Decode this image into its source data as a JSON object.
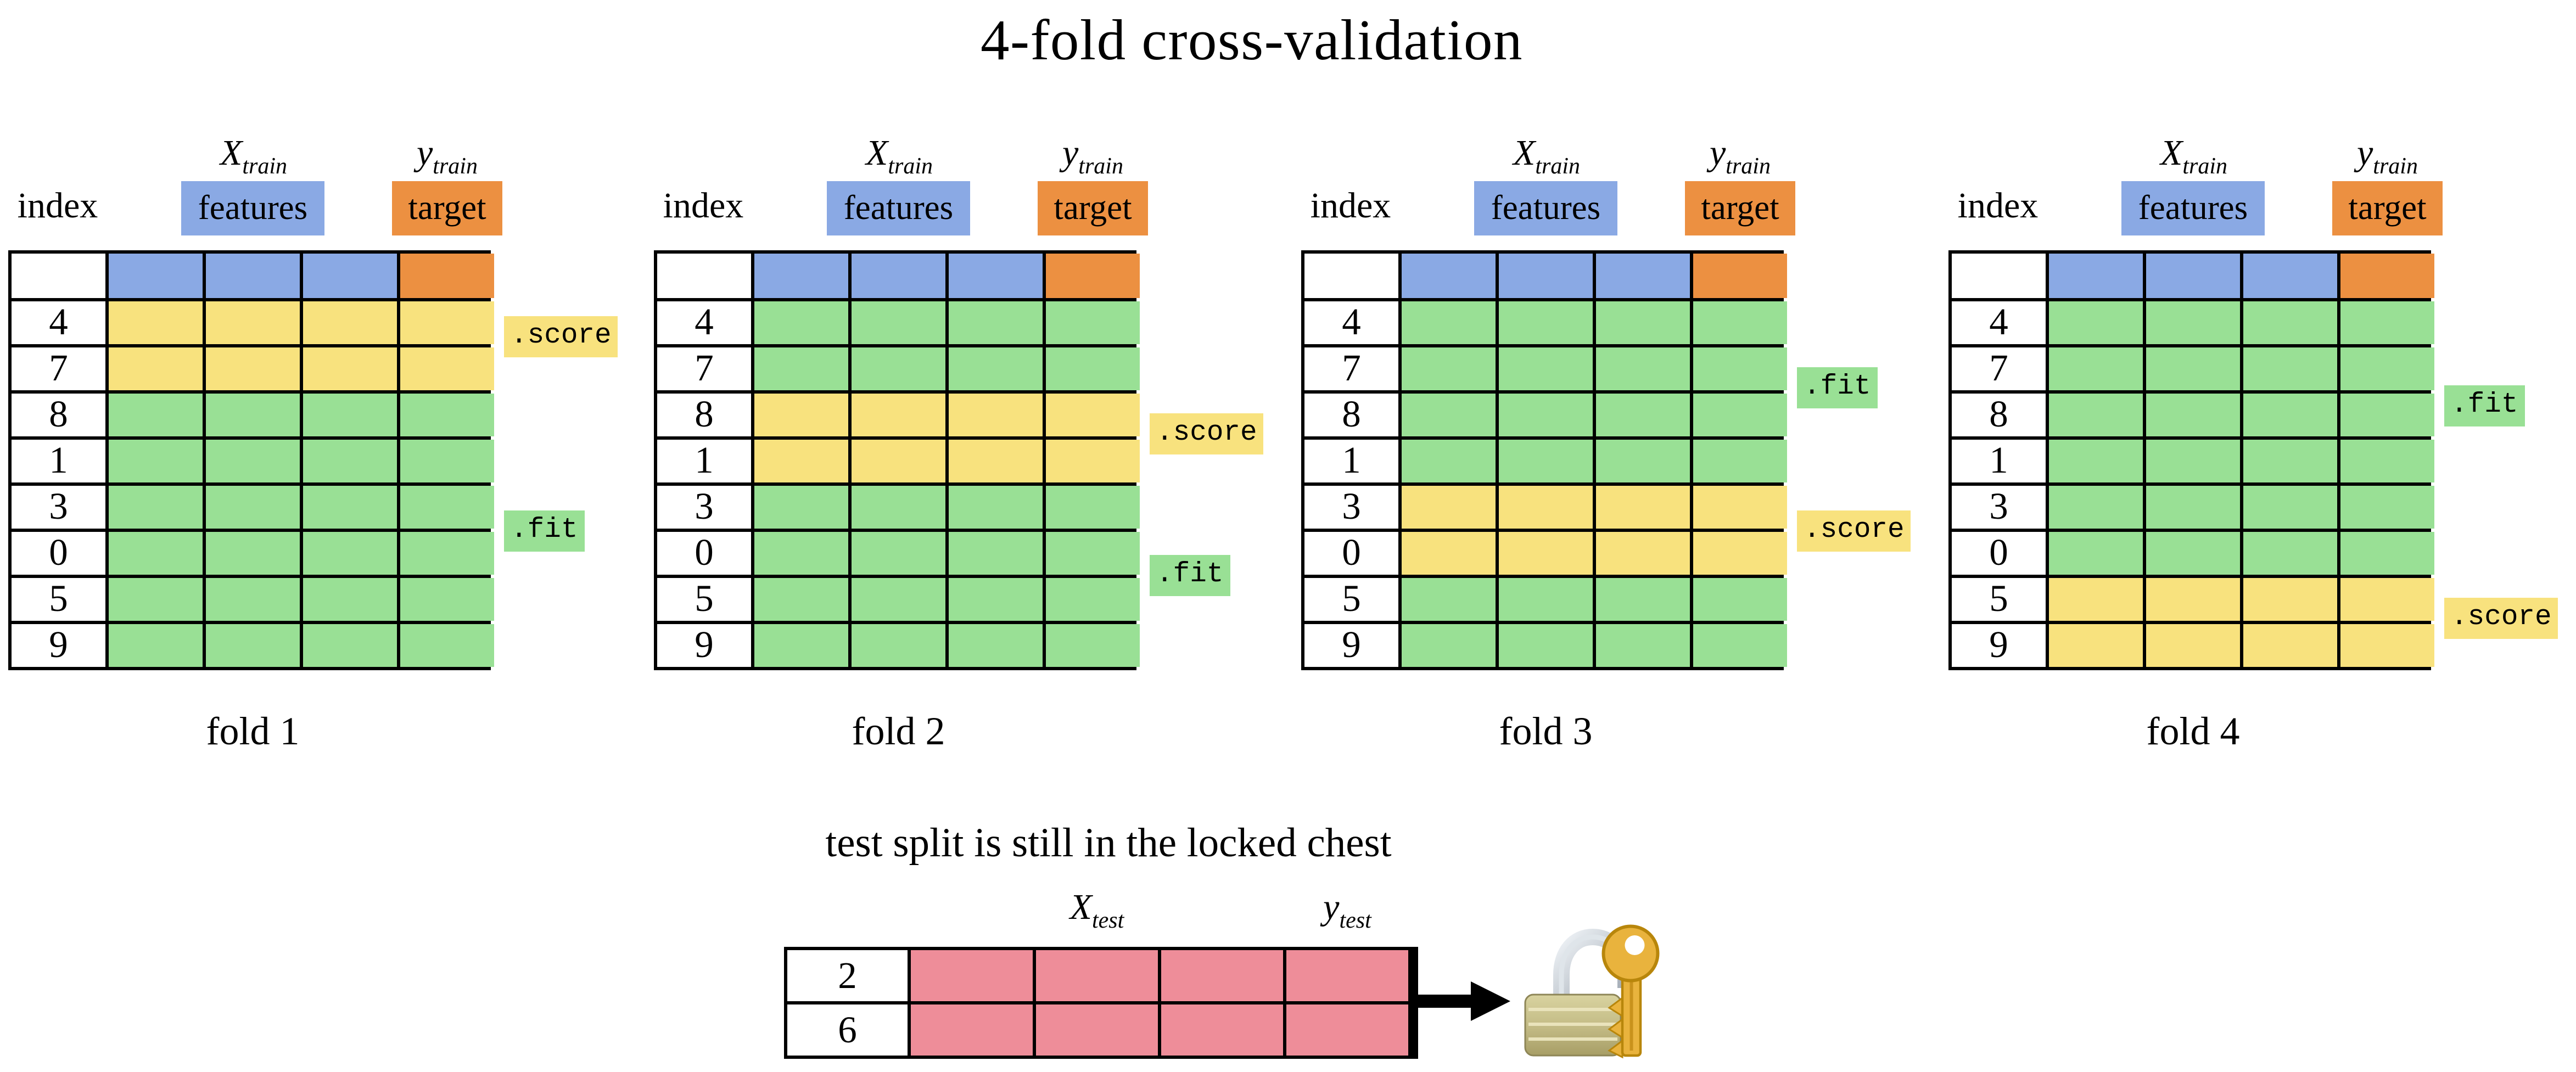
{
  "title": "4-fold cross-validation",
  "header_labels": {
    "index": "index",
    "x_base": "X",
    "x_sub": "train",
    "features": "features",
    "y_base": "y",
    "y_sub": "train",
    "target": "target"
  },
  "labels": {
    "fit": ".fit",
    "score": ".score"
  },
  "colors": {
    "features_blue": "#8aa9e4",
    "target_orange": "#ec9041",
    "score_yellow": "#f8e27e",
    "fit_green": "#99e095",
    "test_pink": "#ee8d99",
    "grid_line": "#000000"
  },
  "folds": [
    {
      "caption": "fold 1",
      "score_anchor": 0.8,
      "fit_anchor": 5.0,
      "rows": [
        {
          "index": "4",
          "role": "score"
        },
        {
          "index": "7",
          "role": "score"
        },
        {
          "index": "8",
          "role": "fit"
        },
        {
          "index": "1",
          "role": "fit"
        },
        {
          "index": "3",
          "role": "fit"
        },
        {
          "index": "0",
          "role": "fit"
        },
        {
          "index": "5",
          "role": "fit"
        },
        {
          "index": "9",
          "role": "fit"
        }
      ]
    },
    {
      "caption": "fold 2",
      "score_anchor": 2.9,
      "fit_anchor": 5.95,
      "rows": [
        {
          "index": "4",
          "role": "fit"
        },
        {
          "index": "7",
          "role": "fit"
        },
        {
          "index": "8",
          "role": "score"
        },
        {
          "index": "1",
          "role": "score"
        },
        {
          "index": "3",
          "role": "fit"
        },
        {
          "index": "0",
          "role": "fit"
        },
        {
          "index": "5",
          "role": "fit"
        },
        {
          "index": "9",
          "role": "fit"
        }
      ]
    },
    {
      "caption": "fold 3",
      "score_anchor": 5.0,
      "fit_anchor": 1.9,
      "rows": [
        {
          "index": "4",
          "role": "fit"
        },
        {
          "index": "7",
          "role": "fit"
        },
        {
          "index": "8",
          "role": "fit"
        },
        {
          "index": "1",
          "role": "fit"
        },
        {
          "index": "3",
          "role": "score"
        },
        {
          "index": "0",
          "role": "score"
        },
        {
          "index": "5",
          "role": "fit"
        },
        {
          "index": "9",
          "role": "fit"
        }
      ]
    },
    {
      "caption": "fold 4",
      "score_anchor": 6.9,
      "fit_anchor": 2.3,
      "rows": [
        {
          "index": "4",
          "role": "fit"
        },
        {
          "index": "7",
          "role": "fit"
        },
        {
          "index": "8",
          "role": "fit"
        },
        {
          "index": "1",
          "role": "fit"
        },
        {
          "index": "3",
          "role": "fit"
        },
        {
          "index": "0",
          "role": "fit"
        },
        {
          "index": "5",
          "role": "score"
        },
        {
          "index": "9",
          "role": "score"
        }
      ]
    }
  ],
  "test_section": {
    "heading": "test split is still in the locked chest",
    "x_base": "X",
    "x_sub": "test",
    "y_base": "y",
    "y_sub": "test",
    "rows": [
      {
        "index": "2"
      },
      {
        "index": "6"
      }
    ],
    "icons": {
      "arrow": "right-arrow",
      "lock": "padlock-with-key"
    }
  }
}
